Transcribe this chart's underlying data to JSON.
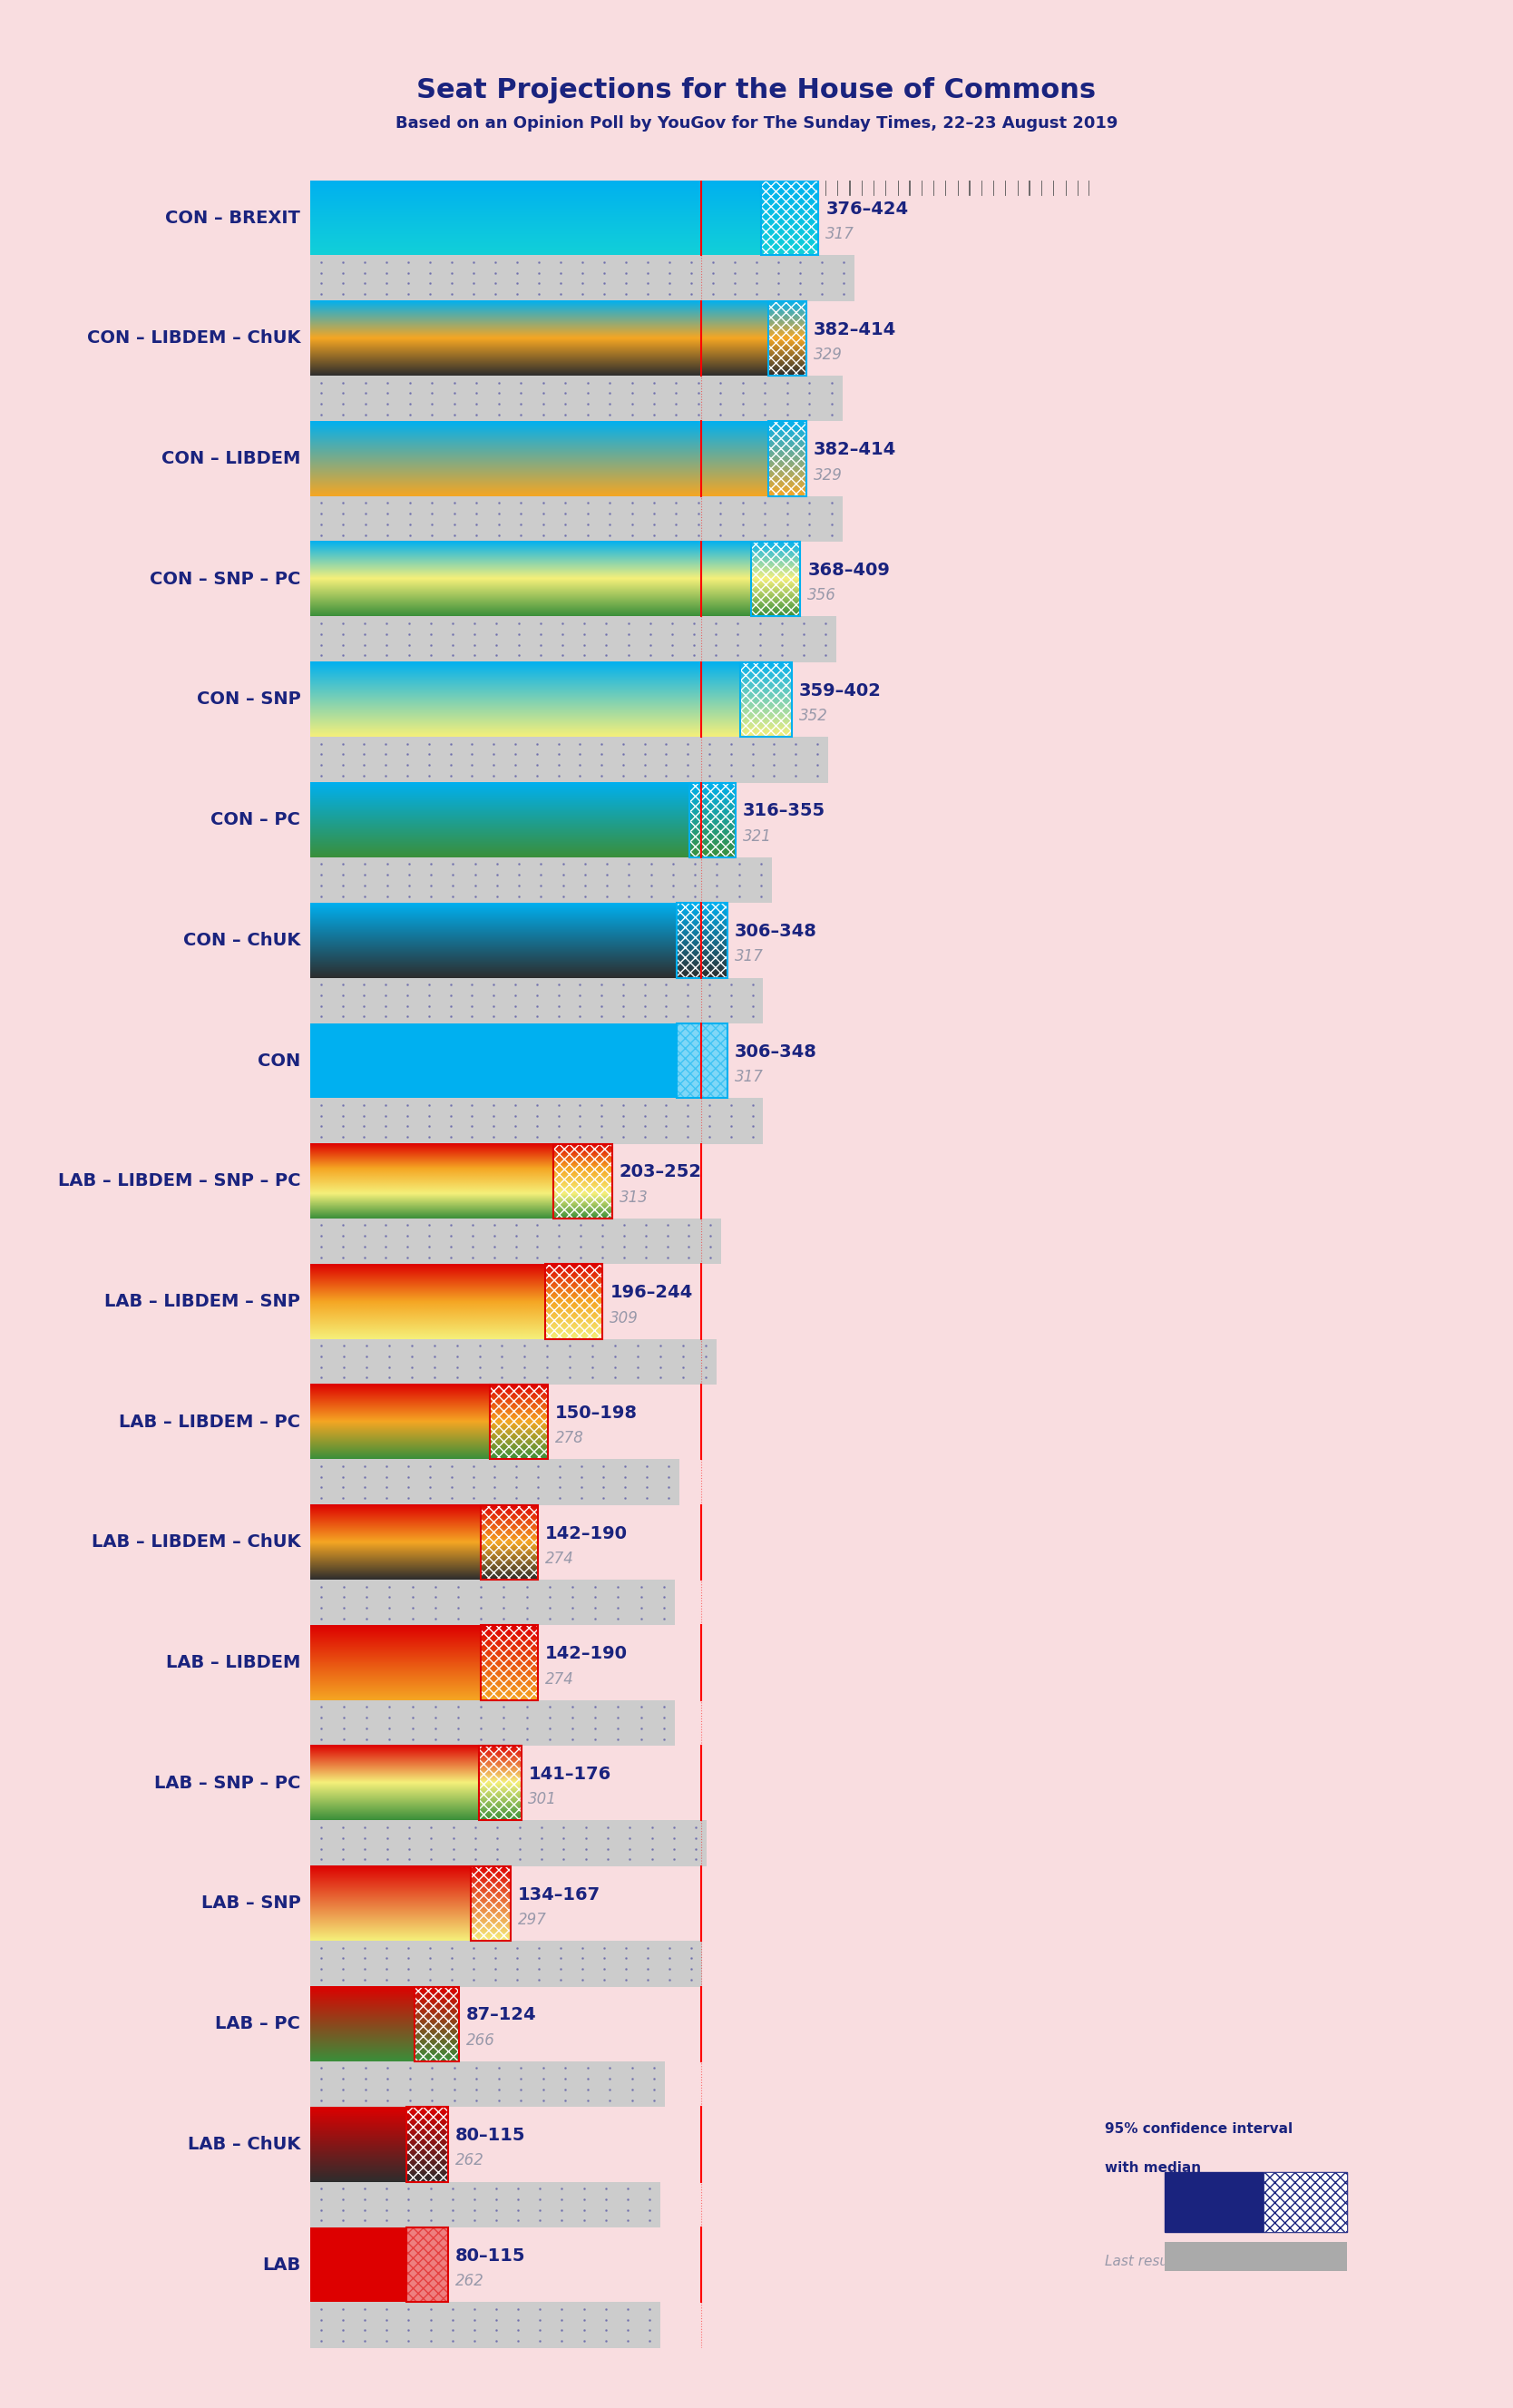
{
  "title": "Seat Projections for the House of Commons",
  "subtitle": "Based on an Opinion Poll by YouGov for The Sunday Times, 22–23 August 2019",
  "background_color": "#f9dde0",
  "title_color": "#1a237e",
  "majority_line": 326,
  "x_max": 650,
  "party_colors": {
    "CON": "#00b0f0",
    "BREXIT": "#12d0d8",
    "LIBDEM": "#f5a623",
    "ChUK": "#2d2d2d",
    "SNP": "#f5f07a",
    "PC": "#3a8f3a",
    "LAB": "#dd0000"
  },
  "coalitions": [
    {
      "label": "CON – BREXIT",
      "range_low": 376,
      "range_high": 424,
      "last_result": 317,
      "parties": [
        "CON",
        "BREXIT"
      ]
    },
    {
      "label": "CON – LIBDEM – ChUK",
      "range_low": 382,
      "range_high": 414,
      "last_result": 329,
      "parties": [
        "CON",
        "LIBDEM",
        "ChUK"
      ]
    },
    {
      "label": "CON – LIBDEM",
      "range_low": 382,
      "range_high": 414,
      "last_result": 329,
      "parties": [
        "CON",
        "LIBDEM"
      ]
    },
    {
      "label": "CON – SNP – PC",
      "range_low": 368,
      "range_high": 409,
      "last_result": 356,
      "parties": [
        "CON",
        "SNP",
        "PC"
      ]
    },
    {
      "label": "CON – SNP",
      "range_low": 359,
      "range_high": 402,
      "last_result": 352,
      "parties": [
        "CON",
        "SNP"
      ]
    },
    {
      "label": "CON – PC",
      "range_low": 316,
      "range_high": 355,
      "last_result": 321,
      "parties": [
        "CON",
        "PC"
      ]
    },
    {
      "label": "CON – ChUK",
      "range_low": 306,
      "range_high": 348,
      "last_result": 317,
      "parties": [
        "CON",
        "ChUK"
      ]
    },
    {
      "label": "CON",
      "range_low": 306,
      "range_high": 348,
      "last_result": 317,
      "parties": [
        "CON"
      ]
    },
    {
      "label": "LAB – LIBDEM – SNP – PC",
      "range_low": 203,
      "range_high": 252,
      "last_result": 313,
      "parties": [
        "LAB",
        "LIBDEM",
        "SNP",
        "PC"
      ]
    },
    {
      "label": "LAB – LIBDEM – SNP",
      "range_low": 196,
      "range_high": 244,
      "last_result": 309,
      "parties": [
        "LAB",
        "LIBDEM",
        "SNP"
      ]
    },
    {
      "label": "LAB – LIBDEM – PC",
      "range_low": 150,
      "range_high": 198,
      "last_result": 278,
      "parties": [
        "LAB",
        "LIBDEM",
        "PC"
      ]
    },
    {
      "label": "LAB – LIBDEM – ChUK",
      "range_low": 142,
      "range_high": 190,
      "last_result": 274,
      "parties": [
        "LAB",
        "LIBDEM",
        "ChUK"
      ]
    },
    {
      "label": "LAB – LIBDEM",
      "range_low": 142,
      "range_high": 190,
      "last_result": 274,
      "parties": [
        "LAB",
        "LIBDEM"
      ]
    },
    {
      "label": "LAB – SNP – PC",
      "range_low": 141,
      "range_high": 176,
      "last_result": 301,
      "parties": [
        "LAB",
        "SNP",
        "PC"
      ]
    },
    {
      "label": "LAB – SNP",
      "range_low": 134,
      "range_high": 167,
      "last_result": 297,
      "parties": [
        "LAB",
        "SNP"
      ]
    },
    {
      "label": "LAB – PC",
      "range_low": 87,
      "range_high": 124,
      "last_result": 266,
      "parties": [
        "LAB",
        "PC"
      ]
    },
    {
      "label": "LAB – ChUK",
      "range_low": 80,
      "range_high": 115,
      "last_result": 262,
      "parties": [
        "LAB",
        "ChUK"
      ]
    },
    {
      "label": "LAB",
      "range_low": 80,
      "range_high": 115,
      "last_result": 262,
      "parties": [
        "LAB"
      ]
    }
  ]
}
